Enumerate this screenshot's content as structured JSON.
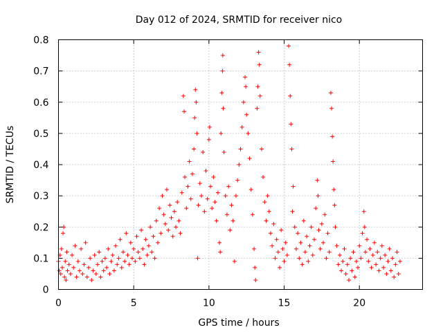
{
  "chart_data": {
    "type": "scatter",
    "title": "Day 012 of 2024, SRMTID for receiver nico",
    "xlabel": "GPS time / hours",
    "ylabel": "SRMTID / TECUs",
    "xlim": [
      0,
      24.2
    ],
    "ylim": [
      0,
      0.8
    ],
    "x_ticks": [
      0,
      5,
      10,
      15,
      20
    ],
    "x_tick_labels": [
      "0",
      "5",
      "10",
      "15",
      "20"
    ],
    "y_ticks": [
      0,
      0.1,
      0.2,
      0.3,
      0.4,
      0.5,
      0.6,
      0.7,
      0.8
    ],
    "y_tick_labels": [
      "0",
      "0.1",
      "0.2",
      "0.3",
      "0.4",
      "0.5",
      "0.6",
      "0.7",
      "0.8"
    ],
    "grid": true,
    "marker": "plus",
    "color": "#ff0000",
    "series": [
      {
        "name": "SRMTID",
        "points": [
          [
            0.0,
            0.09
          ],
          [
            0.05,
            0.06
          ],
          [
            0.1,
            0.11
          ],
          [
            0.15,
            0.05
          ],
          [
            0.2,
            0.13
          ],
          [
            0.25,
            0.07
          ],
          [
            0.3,
            0.18
          ],
          [
            0.35,
            0.2
          ],
          [
            0.4,
            0.04
          ],
          [
            0.45,
            0.09
          ],
          [
            0.5,
            0.03
          ],
          [
            0.55,
            0.12
          ],
          [
            0.6,
            0.06
          ],
          [
            0.7,
            0.08
          ],
          [
            0.8,
            0.05
          ],
          [
            0.9,
            0.11
          ],
          [
            1.0,
            0.07
          ],
          [
            1.1,
            0.14
          ],
          [
            1.2,
            0.04
          ],
          [
            1.3,
            0.09
          ],
          [
            1.4,
            0.06
          ],
          [
            1.5,
            0.13
          ],
          [
            1.6,
            0.05
          ],
          [
            1.7,
            0.08
          ],
          [
            1.8,
            0.15
          ],
          [
            1.9,
            0.04
          ],
          [
            2.0,
            0.07
          ],
          [
            2.1,
            0.1
          ],
          [
            2.2,
            0.03
          ],
          [
            2.3,
            0.06
          ],
          [
            2.4,
            0.11
          ],
          [
            2.5,
            0.05
          ],
          [
            2.6,
            0.08
          ],
          [
            2.7,
            0.12
          ],
          [
            2.8,
            0.04
          ],
          [
            2.9,
            0.09
          ],
          [
            3.0,
            0.06
          ],
          [
            3.1,
            0.1
          ],
          [
            3.2,
            0.07
          ],
          [
            3.3,
            0.13
          ],
          [
            3.4,
            0.05
          ],
          [
            3.5,
            0.09
          ],
          [
            3.6,
            0.11
          ],
          [
            3.7,
            0.06
          ],
          [
            3.8,
            0.14
          ],
          [
            3.9,
            0.08
          ],
          [
            4.0,
            0.1
          ],
          [
            4.1,
            0.16
          ],
          [
            4.2,
            0.07
          ],
          [
            4.3,
            0.12
          ],
          [
            4.4,
            0.09
          ],
          [
            4.5,
            0.18
          ],
          [
            4.6,
            0.11
          ],
          [
            4.7,
            0.08
          ],
          [
            4.8,
            0.15
          ],
          [
            4.9,
            0.1
          ],
          [
            5.0,
            0.13
          ],
          [
            5.1,
            0.09
          ],
          [
            5.2,
            0.17
          ],
          [
            5.3,
            0.12
          ],
          [
            5.4,
            0.1
          ],
          [
            5.5,
            0.19
          ],
          [
            5.6,
            0.13
          ],
          [
            5.7,
            0.08
          ],
          [
            5.8,
            0.16
          ],
          [
            5.9,
            0.11
          ],
          [
            6.0,
            0.14
          ],
          [
            6.1,
            0.2
          ],
          [
            6.2,
            0.12
          ],
          [
            6.3,
            0.17
          ],
          [
            6.4,
            0.1
          ],
          [
            6.5,
            0.22
          ],
          [
            6.6,
            0.15
          ],
          [
            6.7,
            0.26
          ],
          [
            6.8,
            0.18
          ],
          [
            6.9,
            0.3
          ],
          [
            7.0,
            0.24
          ],
          [
            7.1,
            0.21
          ],
          [
            7.2,
            0.32
          ],
          [
            7.3,
            0.19
          ],
          [
            7.4,
            0.27
          ],
          [
            7.5,
            0.23
          ],
          [
            7.6,
            0.17
          ],
          [
            7.7,
            0.25
          ],
          [
            7.8,
            0.2
          ],
          [
            7.9,
            0.28
          ],
          [
            8.0,
            0.22
          ],
          [
            8.1,
            0.18
          ],
          [
            8.2,
            0.31
          ],
          [
            8.3,
            0.62
          ],
          [
            8.35,
            0.57
          ],
          [
            8.4,
            0.36
          ],
          [
            8.5,
            0.26
          ],
          [
            8.6,
            0.33
          ],
          [
            8.7,
            0.41
          ],
          [
            8.8,
            0.29
          ],
          [
            8.9,
            0.37
          ],
          [
            9.0,
            0.45
          ],
          [
            9.05,
            0.55
          ],
          [
            9.1,
            0.64
          ],
          [
            9.15,
            0.6
          ],
          [
            9.2,
            0.5
          ],
          [
            9.25,
            0.1
          ],
          [
            9.3,
            0.27
          ],
          [
            9.4,
            0.34
          ],
          [
            9.5,
            0.3
          ],
          [
            9.6,
            0.44
          ],
          [
            9.7,
            0.25
          ],
          [
            9.8,
            0.38
          ],
          [
            9.9,
            0.29
          ],
          [
            10.0,
            0.48
          ],
          [
            10.05,
            0.52
          ],
          [
            10.1,
            0.33
          ],
          [
            10.2,
            0.26
          ],
          [
            10.3,
            0.36
          ],
          [
            10.4,
            0.28
          ],
          [
            10.5,
            0.22
          ],
          [
            10.6,
            0.31
          ],
          [
            10.7,
            0.15
          ],
          [
            10.75,
            0.12
          ],
          [
            10.8,
            0.5
          ],
          [
            10.85,
            0.63
          ],
          [
            10.9,
            0.7
          ],
          [
            10.92,
            0.75
          ],
          [
            10.95,
            0.58
          ],
          [
            11.0,
            0.44
          ],
          [
            11.1,
            0.3
          ],
          [
            11.2,
            0.24
          ],
          [
            11.3,
            0.33
          ],
          [
            11.4,
            0.19
          ],
          [
            11.5,
            0.27
          ],
          [
            11.6,
            0.22
          ],
          [
            11.7,
            0.09
          ],
          [
            11.8,
            0.3
          ],
          [
            11.9,
            0.35
          ],
          [
            12.0,
            0.4
          ],
          [
            12.1,
            0.45
          ],
          [
            12.2,
            0.52
          ],
          [
            12.3,
            0.6
          ],
          [
            12.4,
            0.68
          ],
          [
            12.45,
            0.65
          ],
          [
            12.5,
            0.56
          ],
          [
            12.6,
            0.5
          ],
          [
            12.7,
            0.42
          ],
          [
            12.8,
            0.32
          ],
          [
            12.9,
            0.24
          ],
          [
            13.0,
            0.13
          ],
          [
            13.05,
            0.07
          ],
          [
            13.1,
            0.03
          ],
          [
            13.2,
            0.58
          ],
          [
            13.25,
            0.65
          ],
          [
            13.3,
            0.76
          ],
          [
            13.35,
            0.72
          ],
          [
            13.4,
            0.62
          ],
          [
            13.5,
            0.45
          ],
          [
            13.6,
            0.36
          ],
          [
            13.7,
            0.28
          ],
          [
            13.8,
            0.22
          ],
          [
            13.9,
            0.3
          ],
          [
            14.0,
            0.25
          ],
          [
            14.1,
            0.18
          ],
          [
            14.2,
            0.14
          ],
          [
            14.3,
            0.21
          ],
          [
            14.4,
            0.1
          ],
          [
            14.5,
            0.16
          ],
          [
            14.6,
            0.12
          ],
          [
            14.7,
            0.07
          ],
          [
            14.8,
            0.19
          ],
          [
            14.9,
            0.13
          ],
          [
            15.0,
            0.09
          ],
          [
            15.1,
            0.15
          ],
          [
            15.2,
            0.11
          ],
          [
            15.3,
            0.78
          ],
          [
            15.35,
            0.72
          ],
          [
            15.4,
            0.62
          ],
          [
            15.45,
            0.53
          ],
          [
            15.5,
            0.45
          ],
          [
            15.55,
            0.25
          ],
          [
            15.6,
            0.33
          ],
          [
            15.7,
            0.2
          ],
          [
            15.8,
            0.13
          ],
          [
            15.9,
            0.18
          ],
          [
            16.0,
            0.1
          ],
          [
            16.1,
            0.15
          ],
          [
            16.2,
            0.08
          ],
          [
            16.3,
            0.22
          ],
          [
            16.4,
            0.12
          ],
          [
            16.5,
            0.17
          ],
          [
            16.6,
            0.09
          ],
          [
            16.7,
            0.14
          ],
          [
            16.8,
            0.2
          ],
          [
            16.9,
            0.11
          ],
          [
            17.0,
            0.16
          ],
          [
            17.1,
            0.26
          ],
          [
            17.2,
            0.35
          ],
          [
            17.25,
            0.3
          ],
          [
            17.3,
            0.19
          ],
          [
            17.4,
            0.13
          ],
          [
            17.5,
            0.21
          ],
          [
            17.6,
            0.15
          ],
          [
            17.7,
            0.24
          ],
          [
            17.8,
            0.1
          ],
          [
            17.9,
            0.18
          ],
          [
            18.0,
            0.12
          ],
          [
            18.1,
            0.63
          ],
          [
            18.15,
            0.58
          ],
          [
            18.2,
            0.49
          ],
          [
            18.25,
            0.41
          ],
          [
            18.3,
            0.32
          ],
          [
            18.35,
            0.27
          ],
          [
            18.4,
            0.2
          ],
          [
            18.5,
            0.14
          ],
          [
            18.6,
            0.08
          ],
          [
            18.7,
            0.11
          ],
          [
            18.8,
            0.06
          ],
          [
            18.9,
            0.09
          ],
          [
            19.0,
            0.13
          ],
          [
            19.1,
            0.05
          ],
          [
            19.2,
            0.08
          ],
          [
            19.3,
            0.03
          ],
          [
            19.4,
            0.1
          ],
          [
            19.5,
            0.06
          ],
          [
            19.6,
            0.12
          ],
          [
            19.7,
            0.04
          ],
          [
            19.8,
            0.09
          ],
          [
            19.9,
            0.07
          ],
          [
            20.0,
            0.14
          ],
          [
            20.1,
            0.1
          ],
          [
            20.2,
            0.18
          ],
          [
            20.3,
            0.25
          ],
          [
            20.35,
            0.2
          ],
          [
            20.4,
            0.12
          ],
          [
            20.5,
            0.16
          ],
          [
            20.6,
            0.09
          ],
          [
            20.7,
            0.13
          ],
          [
            20.8,
            0.07
          ],
          [
            20.9,
            0.11
          ],
          [
            21.0,
            0.15
          ],
          [
            21.1,
            0.08
          ],
          [
            21.2,
            0.12
          ],
          [
            21.3,
            0.06
          ],
          [
            21.4,
            0.1
          ],
          [
            21.5,
            0.14
          ],
          [
            21.6,
            0.07
          ],
          [
            21.7,
            0.11
          ],
          [
            21.8,
            0.05
          ],
          [
            21.9,
            0.09
          ],
          [
            22.0,
            0.13
          ],
          [
            22.1,
            0.06
          ],
          [
            22.2,
            0.1
          ],
          [
            22.3,
            0.04
          ],
          [
            22.4,
            0.08
          ],
          [
            22.5,
            0.12
          ],
          [
            22.6,
            0.05
          ],
          [
            22.7,
            0.09
          ]
        ]
      }
    ]
  }
}
